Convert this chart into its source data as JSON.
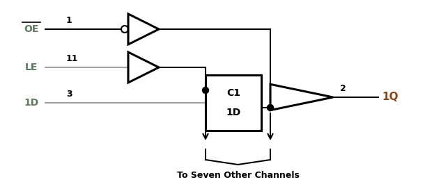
{
  "oe_label": "OE",
  "oe_pin": "1",
  "le_label": "LE",
  "le_pin": "11",
  "d_label": "1D",
  "d_pin": "3",
  "out_pin": "2",
  "out_label": "1Q",
  "box_label_top": "C1",
  "box_label_bot": "1D",
  "bottom_text": "To Seven Other Channels",
  "line_color": "#000000",
  "gray_color": "#a0a0a0",
  "dot_color": "#000000",
  "text_color": "#000000",
  "label_color": "#5c7a5c",
  "pin_color": "#8B4513",
  "bg_color": "#ffffff",
  "lw": 1.5,
  "lw_thick": 2.2
}
